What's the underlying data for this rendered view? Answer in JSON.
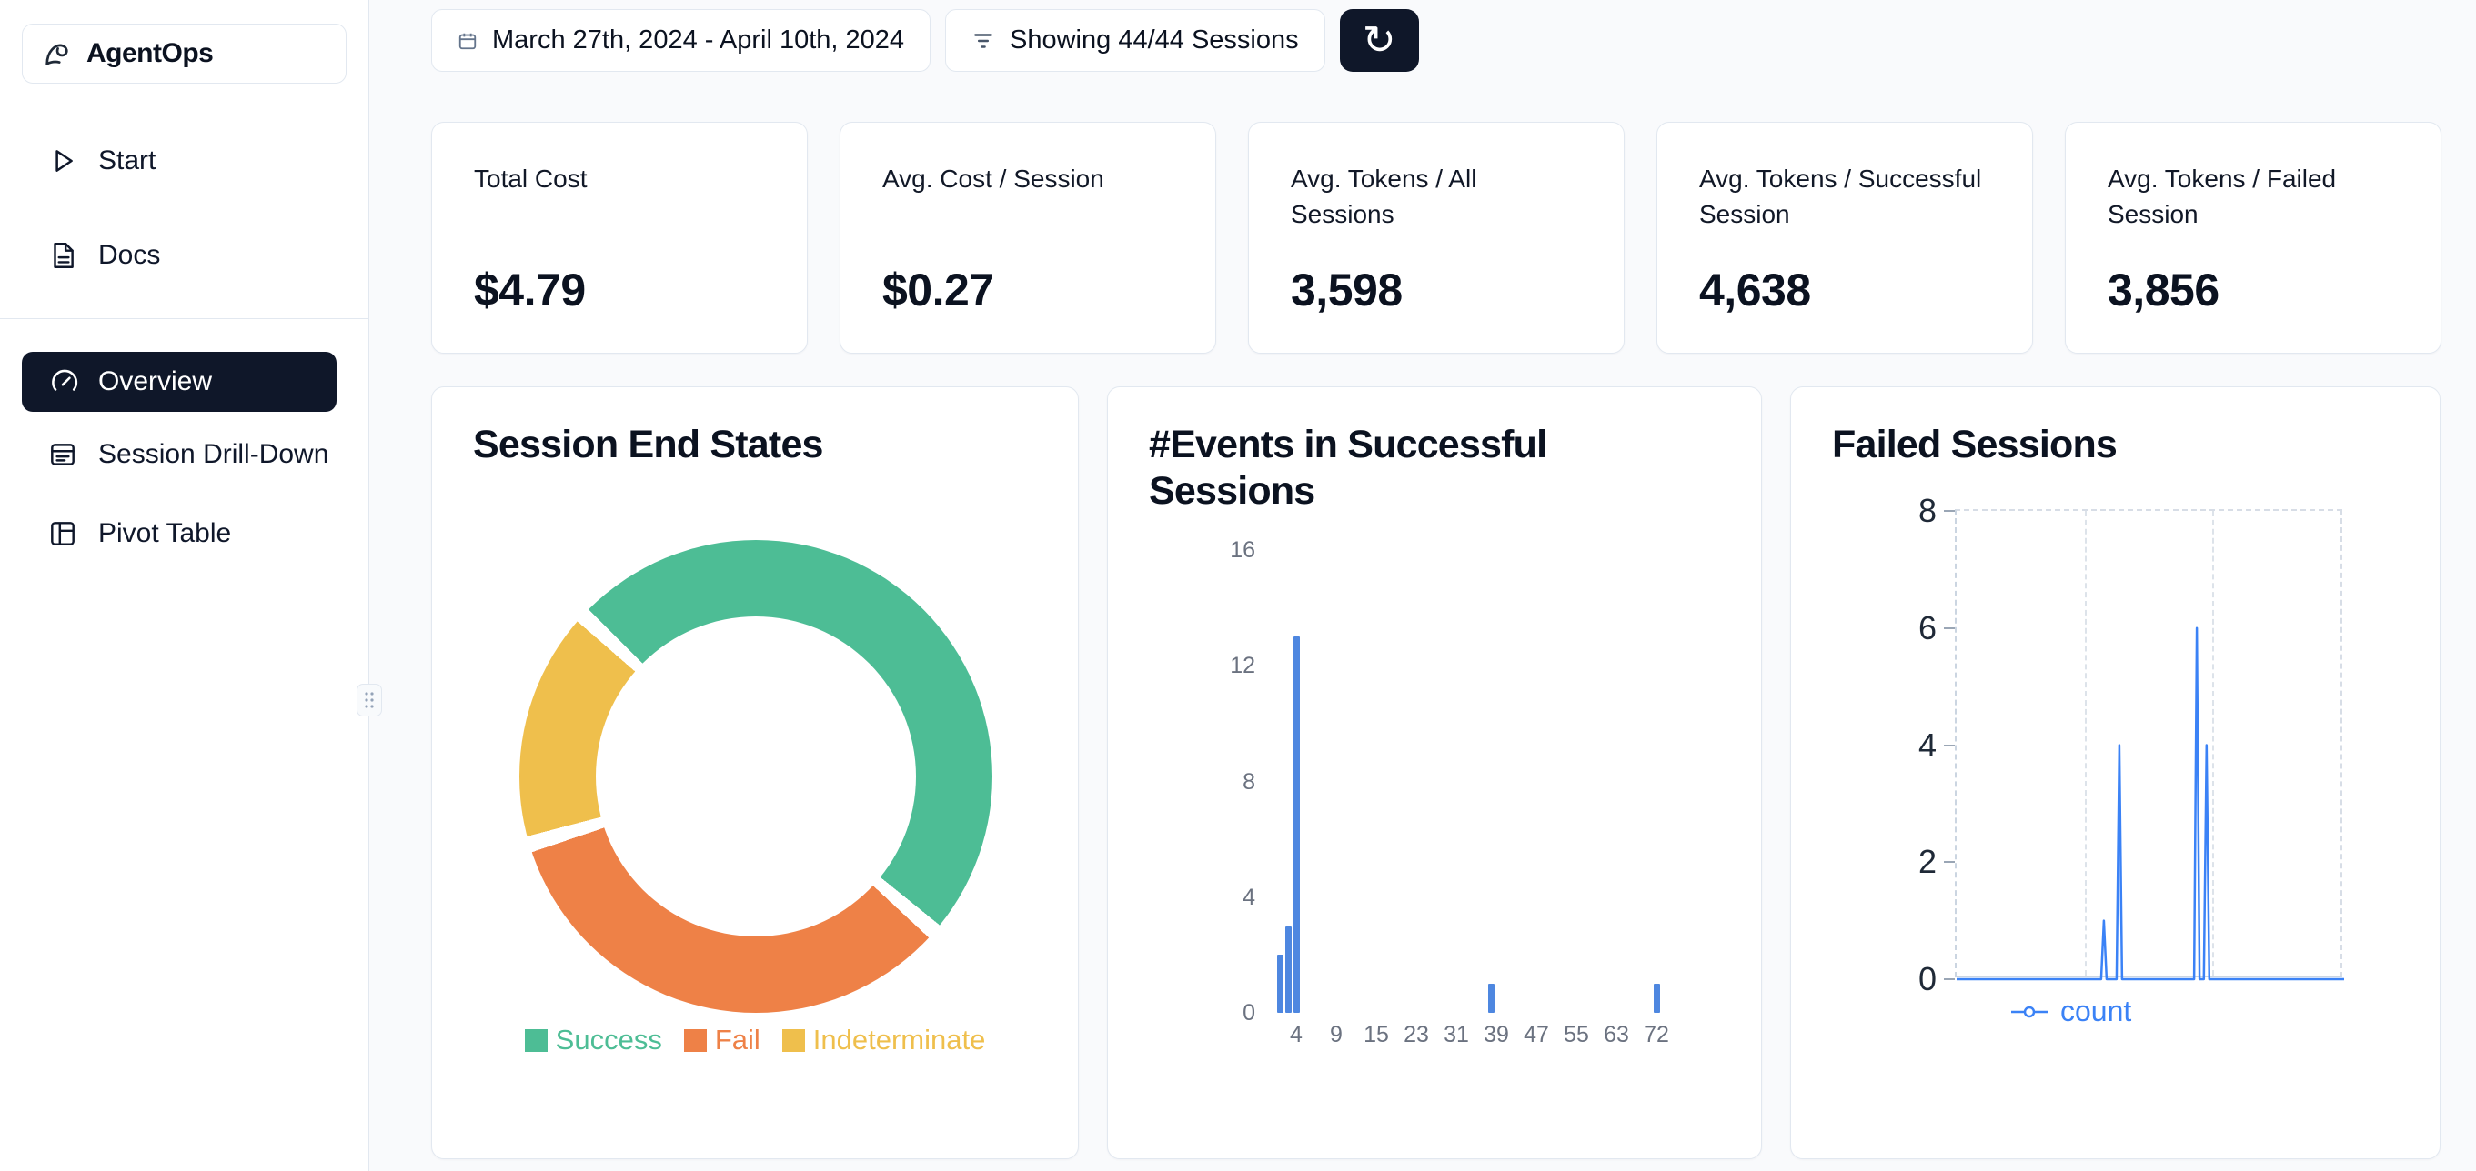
{
  "app": {
    "name": "AgentOps"
  },
  "sidebar": {
    "items": [
      {
        "label": "Start"
      },
      {
        "label": "Docs"
      }
    ],
    "nav": [
      {
        "label": "Overview",
        "active": true
      },
      {
        "label": "Session Drill-Down",
        "active": false
      },
      {
        "label": "Pivot Table",
        "active": false
      }
    ]
  },
  "topbar": {
    "date_range": "March 27th, 2024 - April 10th, 2024",
    "sessions_filter": "Showing 44/44 Sessions",
    "refresh_glyph": "↻"
  },
  "stats": [
    {
      "label": "Total Cost",
      "value": "$4.79"
    },
    {
      "label": "Avg. Cost / Session",
      "value": "$0.27"
    },
    {
      "label": "Avg. Tokens / All Sessions",
      "value": "3,598"
    },
    {
      "label": "Avg. Tokens / Successful Session",
      "value": "4,638"
    },
    {
      "label": "Avg. Tokens / Failed Session",
      "value": "3,856"
    }
  ],
  "chart_data": [
    {
      "type": "pie",
      "variant": "donut",
      "title": "Session End States",
      "labels": [
        "Success",
        "Fail",
        "Indeterminate"
      ],
      "values_pct": [
        50,
        34,
        16
      ],
      "colors": [
        "#4dbd95",
        "#ee8147",
        "#efbf4c"
      ],
      "start_angle_deg": -45,
      "gap_deg": 4,
      "legend_position": "bottom"
    },
    {
      "type": "bar",
      "title": "#Events in Successful Sessions",
      "xticks": [
        4,
        9,
        15,
        23,
        31,
        39,
        47,
        55,
        63,
        72
      ],
      "yticks": [
        0,
        4,
        8,
        12,
        16
      ],
      "ylim": [
        0,
        16
      ],
      "bars": [
        {
          "x": 2,
          "count": 2
        },
        {
          "x": 3,
          "count": 3
        },
        {
          "x": 4,
          "count": 13
        },
        {
          "x": 38,
          "count": 1
        },
        {
          "x": 72,
          "count": 1
        }
      ],
      "bar_color": "#4e87e0",
      "grid": false
    },
    {
      "type": "line",
      "title": "Failed Sessions",
      "yticks": [
        0,
        2,
        4,
        6,
        8
      ],
      "ylim": [
        0,
        8
      ],
      "grid": "dashed",
      "legend_position": "bottom",
      "series": [
        {
          "name": "count",
          "color": "#3b82f6",
          "spikes": [
            {
              "x_frac": 0.38,
              "value": 1
            },
            {
              "x_frac": 0.42,
              "value": 4
            },
            {
              "x_frac": 0.62,
              "value": 6
            },
            {
              "x_frac": 0.645,
              "value": 4
            }
          ]
        }
      ]
    }
  ],
  "theme": {
    "nav_active_bg": "#0f1729",
    "card_border": "#e2e8f0",
    "page_bg": "#f9fafc"
  }
}
